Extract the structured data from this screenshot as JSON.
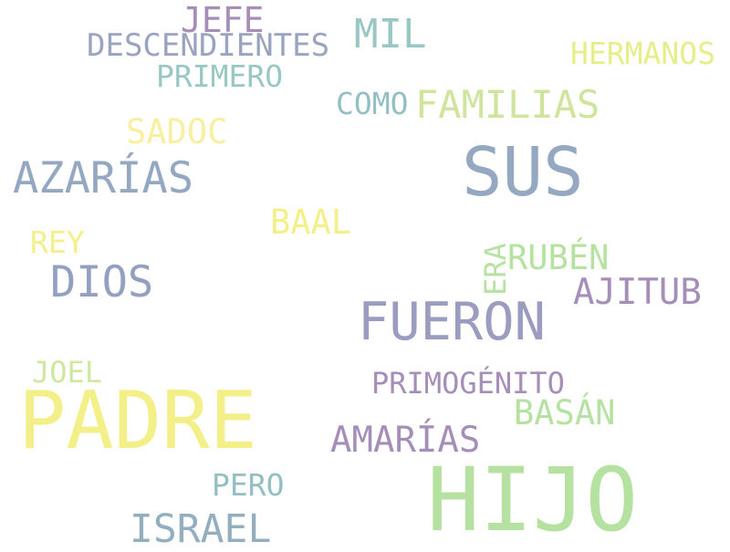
{
  "words": [
    {
      "text": "HIJO",
      "color": "#b6e2a1"
    },
    {
      "text": "PADRE",
      "color": "#f3f08a"
    },
    {
      "text": "SUS",
      "color": "#94a8c2"
    },
    {
      "text": "FUERON",
      "color": "#9a9cc0"
    },
    {
      "text": "AZARÍAS",
      "color": "#94a8c2"
    },
    {
      "text": "DIOS",
      "color": "#94a0c2"
    },
    {
      "text": "ISRAEL",
      "color": "#93aebf"
    },
    {
      "text": "FAMILIAS",
      "color": "#cfe49c"
    },
    {
      "text": "MIL",
      "color": "#99c8c4"
    },
    {
      "text": "AMARÍAS",
      "color": "#a58eb8"
    },
    {
      "text": "AJITUB",
      "color": "#a58eb8"
    },
    {
      "text": "RUBÉN",
      "color": "#b6e2a1"
    },
    {
      "text": "BASÁN",
      "color": "#b6e2a1"
    },
    {
      "text": "PRIMOGÉNITO",
      "color": "#a58eb8"
    },
    {
      "text": "BAAL",
      "color": "#f3f08a"
    },
    {
      "text": "SADOC",
      "color": "#f6f0a0"
    },
    {
      "text": "JEFE",
      "color": "#a58eb8"
    },
    {
      "text": "DESCENDIENTES",
      "color": "#9aa4c0"
    },
    {
      "text": "PRIMERO",
      "color": "#99c8c4"
    },
    {
      "text": "HERMANOS",
      "color": "#e6ee8a"
    },
    {
      "text": "COMO",
      "color": "#93bfc4"
    },
    {
      "text": "REY",
      "color": "#f3f08a"
    },
    {
      "text": "JOEL",
      "color": "#cfe8a0"
    },
    {
      "text": "PERO",
      "color": "#93bfc4"
    },
    {
      "text": "ERA",
      "color": "#b6e2a1"
    }
  ]
}
